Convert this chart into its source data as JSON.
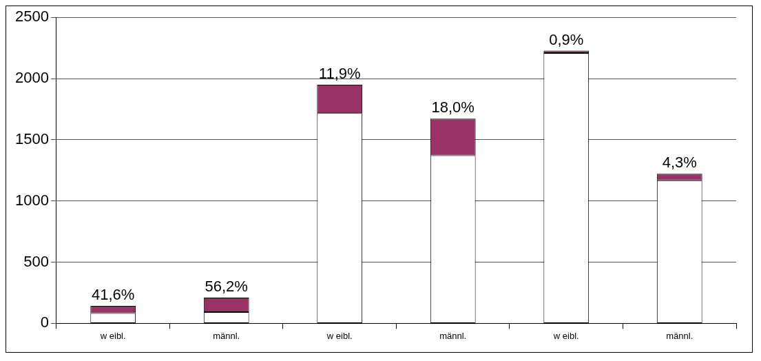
{
  "chart_data": {
    "type": "bar",
    "stacked": true,
    "categories": [
      "w eibl.",
      "männl.",
      "w eibl.",
      "männl.",
      "w eibl.",
      "männl."
    ],
    "series": [
      {
        "color": "#ffffff",
        "values": [
          84,
          93,
          1718,
          1372,
          2208,
          1169
        ]
      },
      {
        "color": "#993366",
        "values": [
          59,
          118,
          232,
          301,
          20,
          53
        ]
      }
    ],
    "annotations": [
      "41,6%",
      "56,2%",
      "11,9%",
      "18,0%",
      "0,9%",
      "4,3%"
    ],
    "ylim": [
      0,
      2500
    ],
    "yticks": [
      0,
      500,
      1000,
      1500,
      2000,
      2500
    ],
    "grid": "y",
    "legend": false
  }
}
